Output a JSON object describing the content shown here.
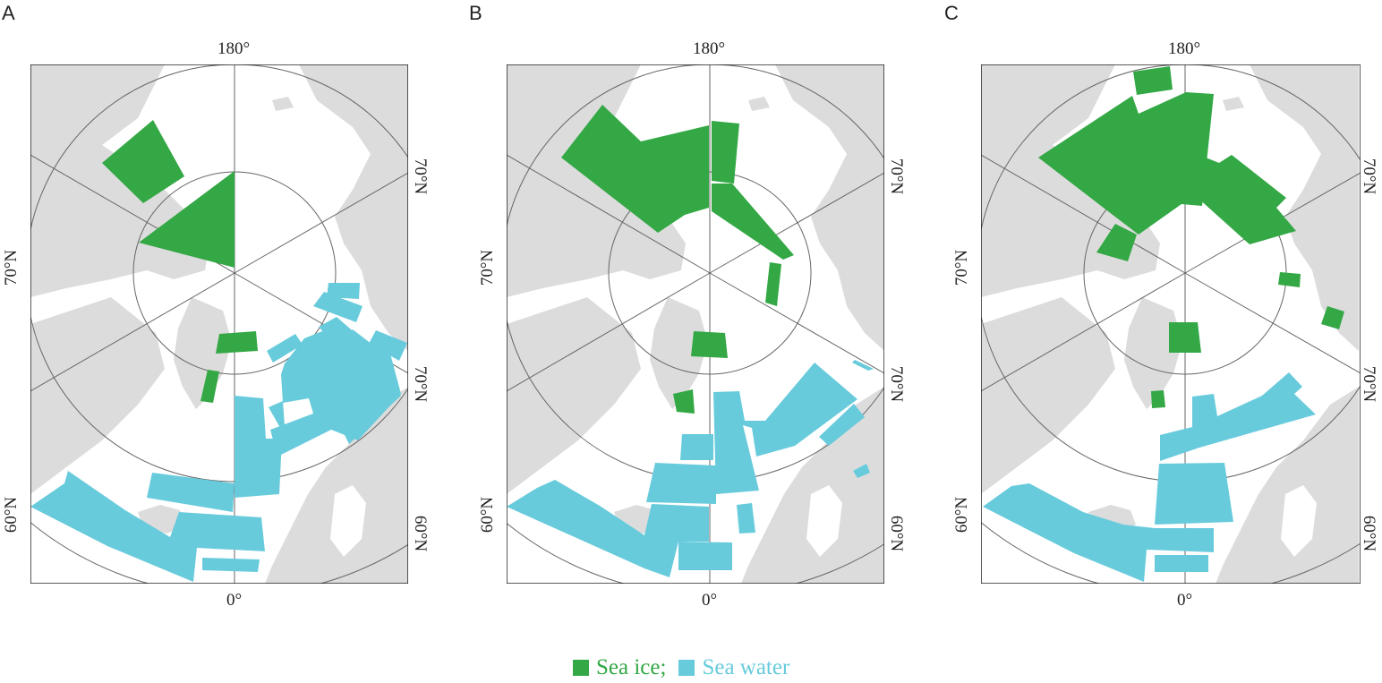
{
  "colors": {
    "sea_ice": "#33a845",
    "sea_water": "#68cbdc",
    "land": "#dcdcdc",
    "grid": "#666666"
  },
  "panels": [
    {
      "letter": "A"
    },
    {
      "letter": "B"
    },
    {
      "letter": "C"
    }
  ],
  "labels": {
    "top_meridian": "180°",
    "bottom_meridian": "0°",
    "lat70": "70°N",
    "lat60": "60°N"
  },
  "legend": {
    "sea_ice_label": "Sea ice;",
    "sea_water_label": "Sea water"
  }
}
